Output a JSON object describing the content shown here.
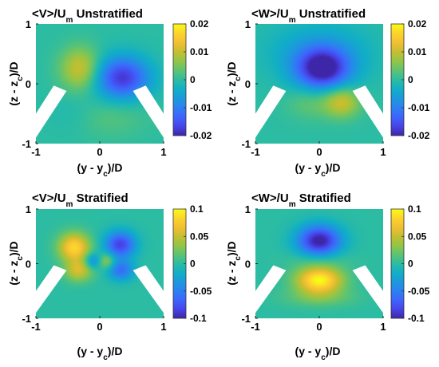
{
  "figure": {
    "panel_order": [
      "v_unstratified",
      "w_unstratified",
      "v_stratified",
      "w_stratified"
    ]
  },
  "colormap": [
    "#3e26a8",
    "#4744e8",
    "#3e64fb",
    "#2d80f1",
    "#1c99dc",
    "#11afc6",
    "#2cbca3",
    "#5dc372",
    "#93c548",
    "#c6be2f",
    "#f2bf34",
    "#fbd42c",
    "#f9fb15"
  ],
  "chart_data": [
    {
      "id": "v_unstratified",
      "type": "heatmap",
      "title_parts": [
        "<V>/U",
        "m",
        " Unstratified"
      ],
      "xlabel_parts": [
        "(y - y",
        "c",
        ")/D"
      ],
      "ylabel_parts": [
        "(z - z",
        "c",
        ")/D"
      ],
      "xlim": [
        -1,
        1
      ],
      "ylim": [
        -1,
        1
      ],
      "xticks": [
        -1,
        0,
        1
      ],
      "yticks": [
        -1,
        0,
        1
      ],
      "xtick_labels": [
        "-1",
        "0",
        "1"
      ],
      "ytick_labels": [
        "-1",
        "0",
        "1"
      ],
      "clim": [
        -0.02,
        0.02
      ],
      "colorbar_ticks": [
        0.02,
        0.01,
        0,
        -0.01,
        -0.02
      ],
      "colorbar_labels": [
        "0.02",
        "0.01",
        "0",
        "-0.01",
        "-0.02"
      ],
      "background": 0,
      "blobs": [
        {
          "y": -0.3,
          "z": 0.25,
          "sy": 0.22,
          "sz": 0.25,
          "amp": 0.011
        },
        {
          "y": 0.35,
          "z": 0.1,
          "sy": 0.3,
          "sz": 0.25,
          "amp": -0.018
        },
        {
          "y": 0.1,
          "z": -0.55,
          "sy": 0.45,
          "sz": 0.25,
          "amp": 0.003
        },
        {
          "y": -0.4,
          "z": -0.5,
          "sy": 0.3,
          "sz": 0.25,
          "amp": -0.002
        }
      ]
    },
    {
      "id": "w_unstratified",
      "type": "heatmap",
      "title_parts": [
        "<W>/U",
        "m",
        " Unstratified"
      ],
      "xlabel_parts": [
        "(y - y",
        "c",
        ")/D"
      ],
      "ylabel_parts": [
        "(z - z",
        "c",
        ")/D"
      ],
      "xlim": [
        -1,
        1
      ],
      "ylim": [
        -1,
        1
      ],
      "xticks": [
        -1,
        0,
        1
      ],
      "yticks": [
        -1,
        0,
        1
      ],
      "xtick_labels": [
        "-1",
        "0",
        "1"
      ],
      "ytick_labels": [
        "-1",
        "0",
        "1"
      ],
      "clim": [
        -0.02,
        0.02
      ],
      "colorbar_ticks": [
        0.02,
        0.01,
        0,
        -0.01,
        -0.02
      ],
      "colorbar_labels": [
        "0.02",
        "0.01",
        "0",
        "-0.01",
        "-0.02"
      ],
      "background": 0,
      "blobs": [
        {
          "y": 0.05,
          "z": 0.25,
          "sy": 0.3,
          "sz": 0.25,
          "amp": -0.021
        },
        {
          "y": 0.0,
          "z": 0.55,
          "sy": 0.6,
          "sz": 0.35,
          "amp": -0.005
        },
        {
          "y": 0.35,
          "z": -0.3,
          "sy": 0.2,
          "sz": 0.18,
          "amp": 0.011
        },
        {
          "y": -0.15,
          "z": -0.3,
          "sy": 0.25,
          "sz": 0.2,
          "amp": 0.004
        }
      ]
    },
    {
      "id": "v_stratified",
      "type": "heatmap",
      "title_parts": [
        "<V>/U",
        "m",
        " Stratified"
      ],
      "xlabel_parts": [
        "(y - y",
        "c",
        ")/D"
      ],
      "ylabel_parts": [
        "(z - z",
        "c",
        ")/D"
      ],
      "xlim": [
        -1,
        1
      ],
      "ylim": [
        -1,
        1
      ],
      "xticks": [
        -1,
        0,
        1
      ],
      "yticks": [
        -1,
        0,
        1
      ],
      "xtick_labels": [
        "-1",
        "0",
        "1"
      ],
      "ytick_labels": [
        "-1",
        "0",
        "1"
      ],
      "clim": [
        -0.1,
        0.1
      ],
      "colorbar_ticks": [
        0.1,
        0.05,
        0,
        -0.05,
        -0.1
      ],
      "colorbar_labels": [
        "0.1",
        "0.05",
        "0",
        "-0.05",
        "-0.1"
      ],
      "background": 0,
      "blobs": [
        {
          "y": -0.4,
          "z": 0.3,
          "sy": 0.17,
          "sz": 0.18,
          "amp": 0.085
        },
        {
          "y": -0.33,
          "z": -0.12,
          "sy": 0.15,
          "sz": 0.14,
          "amp": 0.055
        },
        {
          "y": 0.32,
          "z": 0.35,
          "sy": 0.17,
          "sz": 0.17,
          "amp": -0.085
        },
        {
          "y": 0.33,
          "z": -0.12,
          "sy": 0.14,
          "sz": 0.13,
          "amp": -0.06
        },
        {
          "y": -0.1,
          "z": 0.05,
          "sy": 0.1,
          "sz": 0.1,
          "amp": -0.05
        },
        {
          "y": 0.1,
          "z": 0.05,
          "sy": 0.1,
          "sz": 0.1,
          "amp": 0.045
        }
      ]
    },
    {
      "id": "w_stratified",
      "type": "heatmap",
      "title_parts": [
        "<W>/U",
        "m",
        " Stratified"
      ],
      "xlabel_parts": [
        "(y - y",
        "c",
        ")/D"
      ],
      "ylabel_parts": [
        "(z - z",
        "c",
        ")/D"
      ],
      "xlim": [
        -1,
        1
      ],
      "ylim": [
        -1,
        1
      ],
      "xticks": [
        -1,
        0,
        1
      ],
      "yticks": [
        -1,
        0,
        1
      ],
      "xtick_labels": [
        "-1",
        "0",
        "1"
      ],
      "ytick_labels": [
        "-1",
        "0",
        "1"
      ],
      "clim": [
        -0.1,
        0.1
      ],
      "colorbar_ticks": [
        0.1,
        0.05,
        0,
        -0.05,
        -0.1
      ],
      "colorbar_labels": [
        "0.1",
        "0.05",
        "0",
        "-0.05",
        "-0.1"
      ],
      "background": 0,
      "blobs": [
        {
          "y": 0.0,
          "z": 0.42,
          "sy": 0.24,
          "sz": 0.2,
          "amp": -0.105
        },
        {
          "y": 0.0,
          "z": -0.3,
          "sy": 0.25,
          "sz": 0.17,
          "amp": 0.1
        },
        {
          "y": 0.0,
          "z": -0.62,
          "sy": 0.4,
          "sz": 0.12,
          "amp": 0.02
        },
        {
          "y": 0.0,
          "z": 0.08,
          "sy": 0.35,
          "sz": 0.12,
          "amp": 0.012
        }
      ]
    }
  ]
}
